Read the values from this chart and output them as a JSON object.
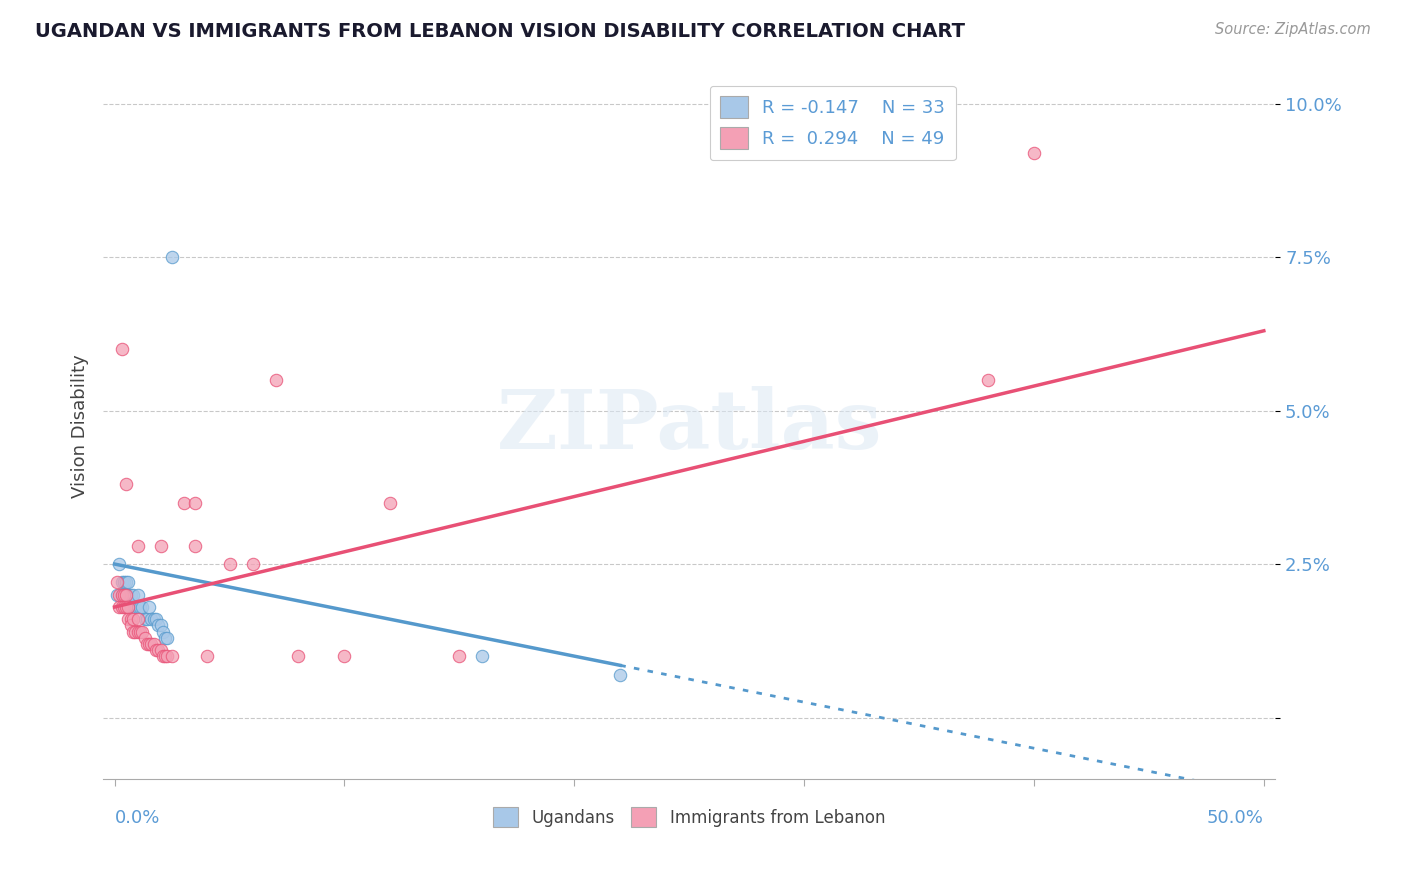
{
  "title": "UGANDAN VS IMMIGRANTS FROM LEBANON VISION DISABILITY CORRELATION CHART",
  "source": "Source: ZipAtlas.com",
  "ylabel": "Vision Disability",
  "xlim": [
    -0.005,
    0.505
  ],
  "ylim": [
    -0.01,
    0.105
  ],
  "yticks": [
    0.0,
    0.025,
    0.05,
    0.075,
    0.1
  ],
  "ytick_labels": [
    "",
    "2.5%",
    "5.0%",
    "7.5%",
    "10.0%"
  ],
  "watermark": "ZIPatlas",
  "color_ugandan": "#a8c8e8",
  "color_lebanon": "#f4a0b5",
  "color_ugandan_line": "#5599cc",
  "color_lebanon_line": "#e85075",
  "background_color": "#ffffff",
  "ugandan_x": [
    0.001,
    0.002,
    0.003,
    0.003,
    0.004,
    0.004,
    0.005,
    0.005,
    0.006,
    0.006,
    0.007,
    0.007,
    0.008,
    0.008,
    0.009,
    0.01,
    0.01,
    0.011,
    0.012,
    0.013,
    0.014,
    0.015,
    0.016,
    0.017,
    0.018,
    0.019,
    0.02,
    0.021,
    0.022,
    0.023,
    0.025,
    0.16,
    0.22
  ],
  "ugandan_y": [
    0.02,
    0.025,
    0.02,
    0.022,
    0.02,
    0.022,
    0.02,
    0.022,
    0.02,
    0.022,
    0.02,
    0.018,
    0.02,
    0.018,
    0.018,
    0.02,
    0.018,
    0.018,
    0.018,
    0.016,
    0.016,
    0.018,
    0.016,
    0.016,
    0.016,
    0.015,
    0.015,
    0.014,
    0.013,
    0.013,
    0.075,
    0.01,
    0.007
  ],
  "lebanon_x": [
    0.001,
    0.002,
    0.002,
    0.003,
    0.003,
    0.004,
    0.004,
    0.005,
    0.005,
    0.006,
    0.006,
    0.007,
    0.007,
    0.008,
    0.008,
    0.009,
    0.01,
    0.01,
    0.011,
    0.012,
    0.013,
    0.014,
    0.015,
    0.016,
    0.017,
    0.018,
    0.019,
    0.02,
    0.021,
    0.022,
    0.023,
    0.025,
    0.03,
    0.035,
    0.04,
    0.05,
    0.06,
    0.07,
    0.08,
    0.1,
    0.12,
    0.15,
    0.003,
    0.005,
    0.01,
    0.02,
    0.035,
    0.38,
    0.4
  ],
  "lebanon_y": [
    0.022,
    0.02,
    0.018,
    0.02,
    0.018,
    0.02,
    0.018,
    0.02,
    0.018,
    0.018,
    0.016,
    0.016,
    0.015,
    0.016,
    0.014,
    0.014,
    0.016,
    0.014,
    0.014,
    0.014,
    0.013,
    0.012,
    0.012,
    0.012,
    0.012,
    0.011,
    0.011,
    0.011,
    0.01,
    0.01,
    0.01,
    0.01,
    0.035,
    0.035,
    0.01,
    0.025,
    0.025,
    0.055,
    0.01,
    0.01,
    0.035,
    0.01,
    0.06,
    0.038,
    0.028,
    0.028,
    0.028,
    0.055,
    0.092
  ]
}
